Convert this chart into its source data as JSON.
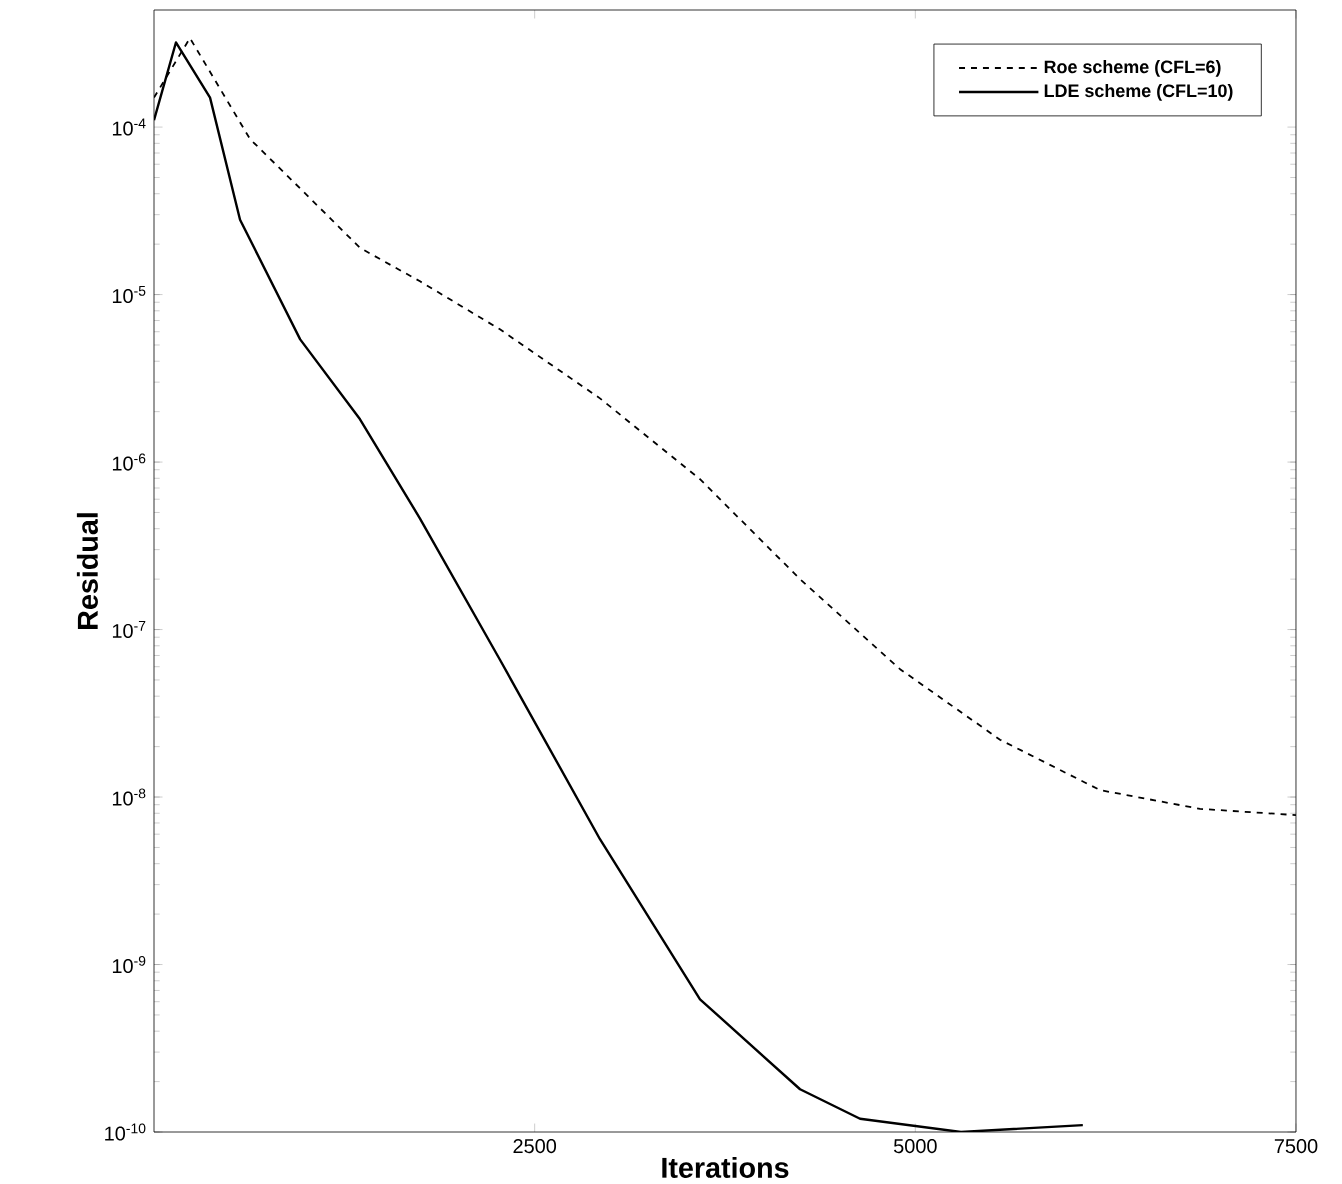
{
  "chart_data": {
    "type": "line",
    "xlabel": "Iterations",
    "ylabel": "Residual",
    "log": "y",
    "legend": "top right",
    "marker": "none",
    "xlim": [
      0,
      7500
    ],
    "xticks": [
      2500,
      5000,
      7500
    ],
    "ylim": [
      1e-10,
      0.0005
    ],
    "yticks": [
      {
        "value": 1e-10,
        "label": "10$^{-10}$"
      },
      {
        "value": 1e-09,
        "label": "10$^{-9}$"
      },
      {
        "value": 1e-08,
        "label": "10$^{-8}$"
      },
      {
        "value": 1e-07,
        "label": "10$^{-7}$"
      },
      {
        "value": 1e-06,
        "label": "10$^{-6}$"
      },
      {
        "value": 1e-05,
        "label": "10$^{-5}$"
      },
      {
        "value": 0.0001,
        "label": "10$^{-4}$"
      }
    ],
    "series": [
      {
        "name": "Roe scheme (CFL=6)",
        "color": "#000000",
        "line_style": "dashed",
        "x": [
          0,
          236,
          630,
          960,
          1353,
          1747,
          2272,
          2929,
          3586,
          4243,
          4900,
          5556,
          6213,
          6870,
          7500
        ],
        "values": [
          0.00015,
          0.00034,
          8.5e-05,
          4.3e-05,
          1.9e-05,
          1.2e-05,
          6.2e-06,
          2.4e-06,
          7.9e-07,
          2e-07,
          5.8e-08,
          2.2e-08,
          1.1e-08,
          8.5e-09,
          7.8e-09
        ]
      },
      {
        "name": "LDE scheme (CFL=10)",
        "color": "#000000",
        "line_style": "solid",
        "x": [
          0,
          144,
          368,
          565,
          960,
          1353,
          1747,
          2272,
          2929,
          3586,
          4243,
          4637,
          5300,
          6100
        ],
        "values": [
          0.00011,
          0.00032,
          0.00015,
          2.8e-05,
          5.4e-06,
          1.8e-06,
          4.6e-07,
          6.6e-08,
          5.6e-09,
          6.2e-10,
          1.8e-10,
          1.2e-10,
          1e-10,
          1.1e-10
        ]
      }
    ]
  }
}
